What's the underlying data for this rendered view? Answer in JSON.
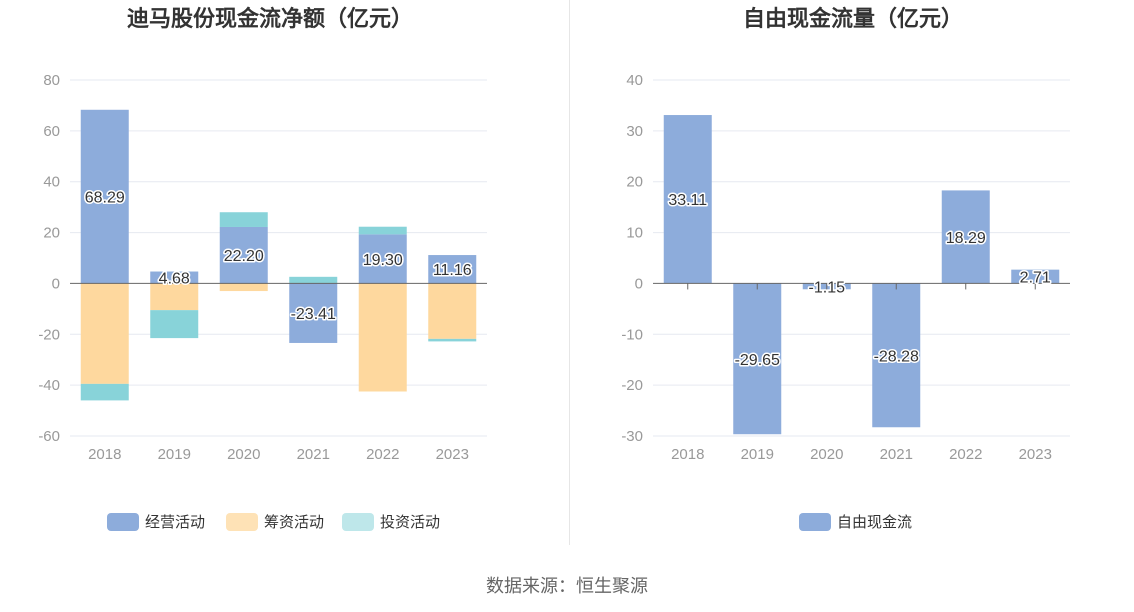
{
  "colors": {
    "operating": "#8dacdb",
    "financing": "#fed89e",
    "investing": "#88d3d9",
    "free_cash_flow": "#8dacdb",
    "axis_text": "#999999",
    "grid": "#e6e9f0",
    "title": "#333333"
  },
  "chart_data": [
    {
      "type": "bar",
      "stacked": true,
      "title": "迪马股份现金流净额（亿元）",
      "categories": [
        "2018",
        "2019",
        "2020",
        "2021",
        "2022",
        "2023"
      ],
      "ylim": [
        -60,
        80
      ],
      "yticks": [
        80,
        60,
        40,
        20,
        0,
        -20,
        -40,
        -60
      ],
      "grid": true,
      "legend_position": "bottom",
      "series": [
        {
          "name": "经营活动",
          "color": "#8dacdb",
          "values": [
            68.29,
            4.68,
            22.2,
            -23.41,
            19.3,
            11.16
          ],
          "labels": [
            "68.29",
            "4.68",
            "22.20",
            "-23.41",
            "19.30",
            "11.16"
          ]
        },
        {
          "name": "筹资活动",
          "color": "#fed89e",
          "values": [
            -39.5,
            -10.5,
            -3.0,
            0,
            -42.5,
            -21.8
          ]
        },
        {
          "name": "投资活动",
          "color": "#88d3d9",
          "values": [
            -6.5,
            -11.0,
            5.8,
            2.6,
            3.0,
            -1.0
          ]
        }
      ]
    },
    {
      "type": "bar",
      "stacked": false,
      "title": "自由现金流量（亿元）",
      "categories": [
        "2018",
        "2019",
        "2020",
        "2021",
        "2022",
        "2023"
      ],
      "ylim": [
        -30,
        40
      ],
      "yticks": [
        40,
        30,
        20,
        10,
        0,
        -10,
        -20,
        -30
      ],
      "grid": true,
      "legend_position": "bottom",
      "series": [
        {
          "name": "自由现金流",
          "color": "#8dacdb",
          "values": [
            33.11,
            -29.65,
            -1.15,
            -28.28,
            18.29,
            2.71
          ],
          "labels": [
            "33.11",
            "-29.65",
            "-1.15",
            "-28.28",
            "18.29",
            "2.71"
          ]
        }
      ]
    }
  ],
  "source": {
    "label": "数据来源：",
    "value": "恒生聚源"
  }
}
